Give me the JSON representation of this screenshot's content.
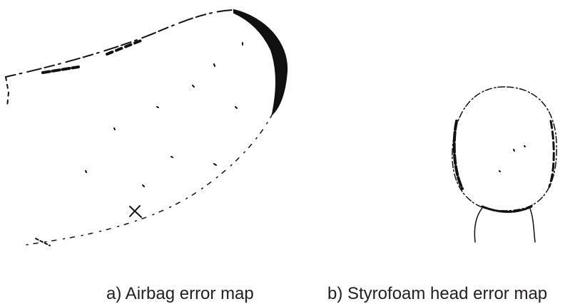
{
  "figure": {
    "panels": [
      {
        "caption": "a) Airbag error map"
      },
      {
        "caption": "b) Styrofoam head error map"
      }
    ]
  }
}
